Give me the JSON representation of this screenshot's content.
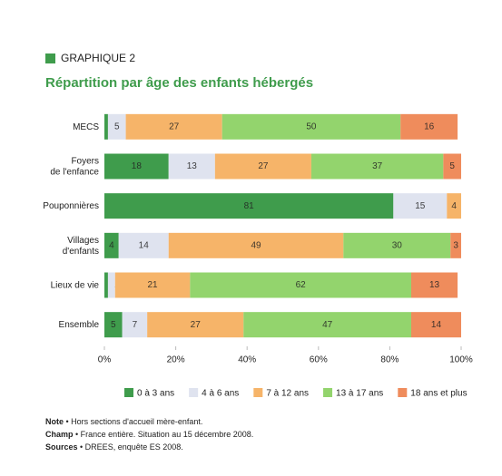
{
  "chart_data": {
    "type": "stacked-bar-horizontal",
    "label": "GRAPHIQUE 2",
    "title": "Répartition par âge des enfants hébergés",
    "categories": [
      "MECS",
      "Foyers\nde l'enfance",
      "Pouponnières",
      "Villages\nd'enfants",
      "Lieux de vie",
      "Ensemble"
    ],
    "series": [
      {
        "name": "0 à 3 ans",
        "color": "#3f9c4c",
        "values": [
          1,
          18,
          81,
          4,
          1,
          5
        ]
      },
      {
        "name": "4 à 6 ans",
        "color": "#dfe3ef",
        "values": [
          5,
          13,
          15,
          14,
          2,
          7
        ]
      },
      {
        "name": "7 à 12 ans",
        "color": "#f6b469",
        "values": [
          27,
          27,
          4,
          49,
          21,
          27
        ]
      },
      {
        "name": "13 à 17 ans",
        "color": "#93d46d",
        "values": [
          50,
          37,
          null,
          30,
          62,
          47
        ]
      },
      {
        "name": "18 ans et plus",
        "color": "#ef8c5c",
        "values": [
          16,
          5,
          null,
          3,
          13,
          14
        ]
      }
    ],
    "xlim": [
      0,
      100
    ],
    "xticks": [
      {
        "value": 0,
        "label": "0%"
      },
      {
        "value": 20,
        "label": "20%"
      },
      {
        "value": 40,
        "label": "40%"
      },
      {
        "value": 60,
        "label": "60%"
      },
      {
        "value": 80,
        "label": "80%"
      },
      {
        "value": 100,
        "label": "100%"
      }
    ],
    "notes": [
      {
        "label": "Note",
        "text": " • Hors sections d'accueil mère-enfant."
      },
      {
        "label": "Champ",
        "text": " • France entière. Situation au 15 décembre 2008."
      },
      {
        "label": "Sources",
        "text": " • DREES, enquête ES 2008."
      }
    ]
  }
}
